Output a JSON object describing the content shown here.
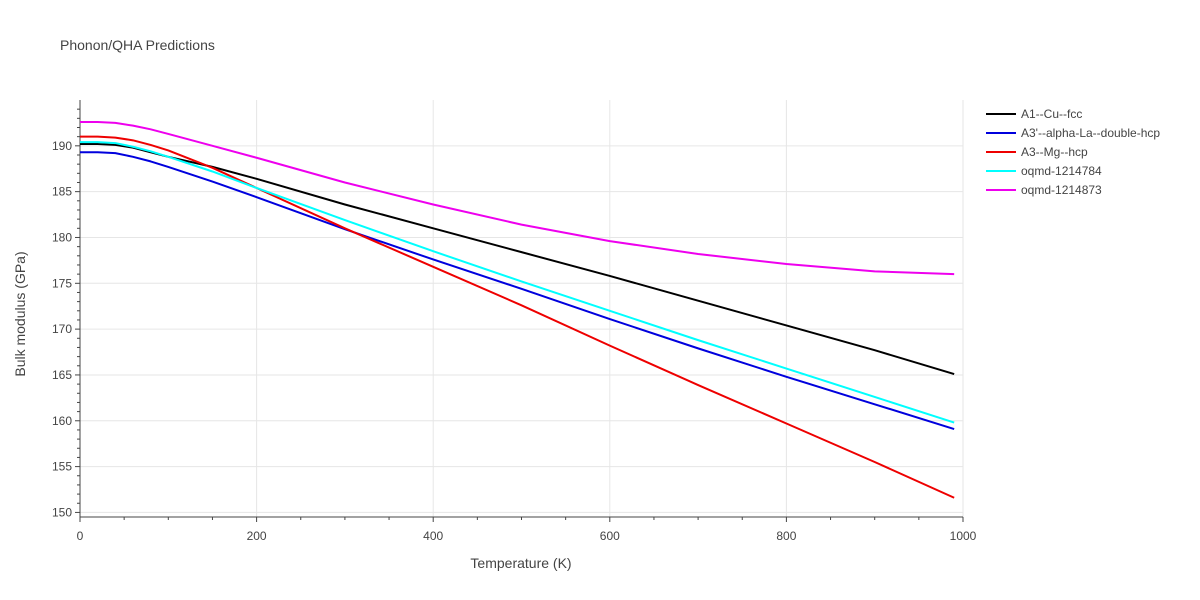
{
  "title": "Phonon/QHA Predictions",
  "chart_data": {
    "type": "line",
    "title": "Phonon/QHA Predictions",
    "xlabel": "Temperature (K)",
    "ylabel": "Bulk modulus (GPa)",
    "xlim": [
      0,
      1000
    ],
    "ylim": [
      149.5,
      195
    ],
    "xticks": [
      0,
      200,
      400,
      600,
      800,
      1000
    ],
    "yticks": [
      150,
      155,
      160,
      165,
      170,
      175,
      180,
      185,
      190
    ],
    "grid": true,
    "legend_position": "top-right",
    "series": [
      {
        "name": "A1--Cu--fcc",
        "color": "#000000",
        "x": [
          0,
          20,
          40,
          60,
          80,
          100,
          150,
          200,
          300,
          400,
          500,
          600,
          700,
          800,
          900,
          990
        ],
        "y": [
          190.2,
          190.2,
          190.1,
          189.8,
          189.3,
          188.8,
          187.7,
          186.4,
          183.6,
          181.0,
          178.4,
          175.8,
          173.1,
          170.4,
          167.7,
          165.1
        ]
      },
      {
        "name": "A3'--alpha-La--double-hcp",
        "color": "#0000dd",
        "x": [
          0,
          20,
          40,
          60,
          80,
          100,
          150,
          200,
          300,
          400,
          500,
          600,
          700,
          800,
          900,
          990
        ],
        "y": [
          189.3,
          189.3,
          189.2,
          188.8,
          188.3,
          187.7,
          186.1,
          184.4,
          180.9,
          177.6,
          174.4,
          171.1,
          167.9,
          164.8,
          161.8,
          159.1
        ]
      },
      {
        "name": "A3--Mg--hcp",
        "color": "#ee0000",
        "x": [
          0,
          20,
          40,
          60,
          80,
          100,
          150,
          200,
          300,
          400,
          500,
          600,
          700,
          800,
          900,
          990
        ],
        "y": [
          191.0,
          191.0,
          190.9,
          190.6,
          190.1,
          189.5,
          187.6,
          185.4,
          181.0,
          176.8,
          172.6,
          168.2,
          163.9,
          159.7,
          155.5,
          151.6
        ]
      },
      {
        "name": "oqmd-1214784",
        "color": "#00ffff",
        "x": [
          0,
          20,
          40,
          60,
          80,
          100,
          150,
          200,
          300,
          400,
          500,
          600,
          700,
          800,
          900,
          990
        ],
        "y": [
          190.4,
          190.4,
          190.3,
          189.9,
          189.4,
          188.8,
          187.2,
          185.4,
          181.9,
          178.5,
          175.2,
          172.0,
          168.8,
          165.7,
          162.6,
          159.8
        ]
      },
      {
        "name": "oqmd-1214873",
        "color": "#ee00ee",
        "x": [
          0,
          20,
          40,
          60,
          80,
          100,
          150,
          200,
          300,
          400,
          500,
          600,
          700,
          800,
          900,
          990
        ],
        "y": [
          192.6,
          192.6,
          192.5,
          192.2,
          191.8,
          191.3,
          190.0,
          188.7,
          186.0,
          183.6,
          181.4,
          179.6,
          178.2,
          177.1,
          176.3,
          176.0
        ]
      }
    ]
  }
}
